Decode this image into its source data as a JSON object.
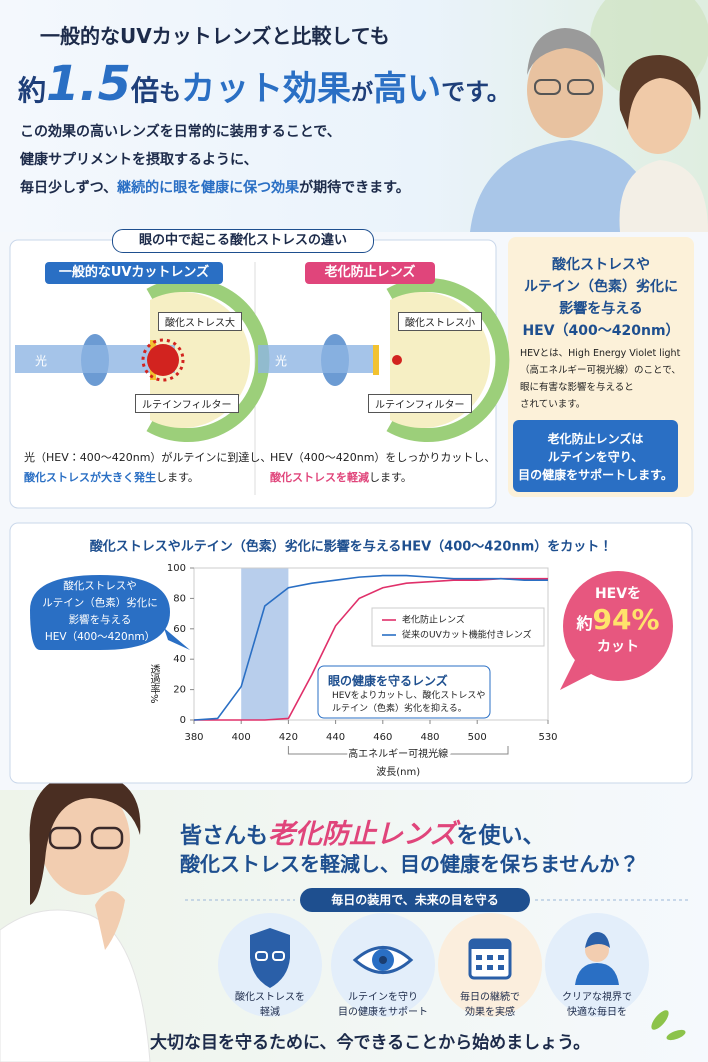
{
  "header": {
    "line1": "一般的なUVカットレンズと比較しても",
    "line2": [
      "約",
      "1.5",
      "倍",
      "も",
      "カット効果",
      "が",
      "高い",
      "です。"
    ],
    "body": [
      "この効果の高いレンズを日常的に装用することで、",
      "健康サプリメントを摂取するように、"
    ],
    "body_last": [
      "毎日少しずつ、",
      "継続的に眼を健康に保つ効果",
      "が期待できます。"
    ]
  },
  "comparison": {
    "title": "眼の中で起こる酸化ストレスの違い",
    "left": {
      "label": "一般的なUVカットレンズ",
      "stress": "酸化ストレス大",
      "light": "光",
      "filter": "ルテインフィルター",
      "desc": "光（HEV：400〜420nm）がルテインに到達し、",
      "result": [
        "酸化ストレスが大きく発生",
        "します。"
      ]
    },
    "right": {
      "label": "老化防止レンズ",
      "stress": "酸化ストレス小",
      "light": "光",
      "filter": "ルテインフィルター",
      "desc": "HEV（400〜420nm）をしっかりカットし、",
      "result": [
        "酸化ストレスを軽減",
        "します。"
      ]
    }
  },
  "hev_box": {
    "title": [
      "酸化ストレスや",
      "ルテイン（色素）劣化に",
      "影響を与える",
      "HEV（400〜420nm）"
    ],
    "note": [
      "HEVとは、High Energy Violet light",
      "（高エネルギー可視光線）のことで、",
      "眼に有害な影響を与えると",
      "されています。"
    ],
    "message": [
      "老化防止レンズは",
      "ルテインを守り、",
      "目の健康をサポートします。"
    ]
  },
  "chart_data": {
    "type": "line",
    "title": "酸化ストレスやルテイン（色素）劣化に影響を与えるHEV（400〜420nm）をカット！",
    "x": [
      380,
      390,
      400,
      410,
      420,
      430,
      440,
      450,
      460,
      470,
      480,
      490,
      500,
      510,
      520,
      530
    ],
    "series": [
      {
        "name": "老化防止レンズ",
        "color": "#e0306a",
        "values": [
          0,
          0,
          0,
          0,
          1,
          30,
          62,
          80,
          87,
          90,
          91,
          92,
          92,
          93,
          93,
          93
        ]
      },
      {
        "name": "従来のUVカット機能付きレンズ",
        "color": "#2a6fc4",
        "values": [
          0,
          1,
          22,
          75,
          87,
          90,
          92,
          94,
          95,
          95,
          94,
          93,
          93,
          93,
          92,
          92
        ]
      }
    ],
    "xlim": [
      380,
      530
    ],
    "xticks": [
      380,
      400,
      420,
      440,
      460,
      480,
      500,
      530
    ],
    "ylim": [
      0,
      100
    ],
    "yticks": [
      0,
      20,
      40,
      60,
      80,
      100
    ],
    "ylabel": "透過率%",
    "xlabel": "波長(nm)",
    "band": [
      400,
      420
    ],
    "band_label": "高エネルギー可視光線",
    "bubble": [
      "酸化ストレスや",
      "ルテイン（色素）劣化に",
      "影響を与える",
      "HEV（400〜420nm）"
    ],
    "callout": {
      "title": "眼の健康を守るレンズ",
      "text": [
        "HEVをよりカットし、酸化ストレスや",
        "ルテイン（色素）劣化を抑える。"
      ]
    },
    "badge": [
      "HEVを",
      "約",
      "94%",
      "カット"
    ]
  },
  "cta": {
    "headline1": [
      "皆さんも",
      "老化防止レンズ",
      "を使い、"
    ],
    "headline2": "酸化ストレスを軽減し、目の健康を保ちませんか？",
    "pill": "毎日の装用で、未来の目を守る",
    "benefits": [
      [
        "酸化ストレスを",
        "軽減"
      ],
      [
        "ルテインを守り",
        "目の健康をサポート"
      ],
      [
        "毎日の継続で",
        "効果を実感"
      ],
      [
        "クリアな視界で",
        "快適な毎日を"
      ]
    ],
    "footer": "大切な目を守るために、今できることから始めましょう。"
  }
}
